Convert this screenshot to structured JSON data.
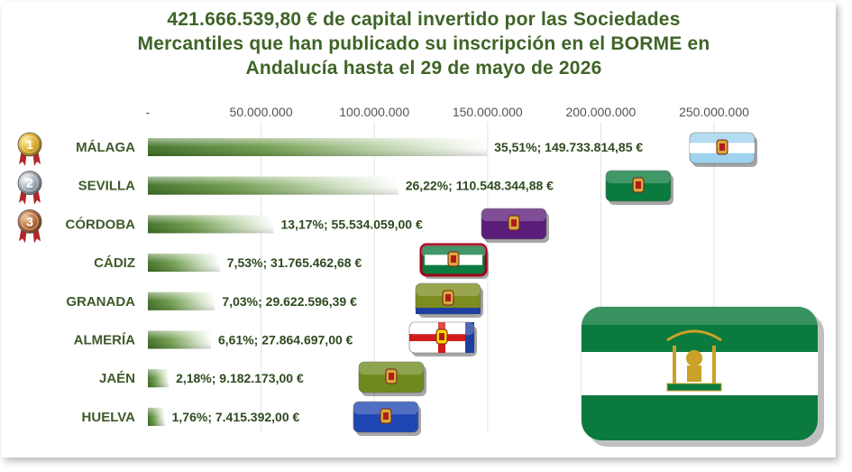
{
  "title_lines": [
    "421.666.539,80 € de capital invertido por las Sociedades",
    "Mercantiles que han publicado su inscripción en el BORME en",
    "Andalucía hasta el 29 de mayo de 2026"
  ],
  "colors": {
    "bar": "#4f7f2f",
    "title": "#3f6427",
    "andalucia_green": "#0b7a3e",
    "gold_medal": "#d8a928",
    "silver_medal": "#9aa6b1",
    "bronze_medal": "#b06a3b"
  },
  "medals": [
    {
      "rank": "1",
      "icon": "gold-medal-icon"
    },
    {
      "rank": "2",
      "icon": "silver-medal-icon"
    },
    {
      "rank": "3",
      "icon": "bronze-medal-icon"
    }
  ],
  "chart_data": {
    "type": "bar",
    "orientation": "horizontal",
    "title": "421.666.539,80 € de capital invertido por las Sociedades Mercantiles que han publicado su inscripción en el BORME en Andalucía hasta el 29 de mayo de 2026",
    "categories": [
      "MÁLAGA",
      "SEVILLA",
      "CÓRDOBA",
      "CÁDIZ",
      "GRANADA",
      "ALMERÍA",
      "JAÉN",
      "HUELVA"
    ],
    "values": [
      149733814.85,
      110548344.88,
      55534059.0,
      31765462.68,
      29622596.39,
      27864697.0,
      9182173.0,
      7415392.0
    ],
    "percents": [
      "35,51%",
      "26,22%",
      "13,17%",
      "7,53%",
      "7,03%",
      "6,61%",
      "2,18%",
      "1,76%"
    ],
    "data_labels": [
      "35,51%; 149.733.814,85 €",
      "26,22%; 110.548.344,88 €",
      "13,17%; 55.534.059,00 €",
      "7,53%; 31.765.462,68 €",
      "7,03%; 29.622.596,39 €",
      "6,61%; 27.864.697,00 €",
      "2,18%; 9.182.173,00 €",
      "1,76%; 7.415.392,00 €"
    ],
    "xlim": [
      0,
      250000000
    ],
    "x_ticks": [
      0,
      50000000,
      100000000,
      150000000,
      200000000,
      250000000
    ],
    "x_tick_labels": [
      "-",
      "50.000.000",
      "100.000.000",
      "150.000.000",
      "200.000.000",
      "250.000.000"
    ],
    "axis_position": "top",
    "grid": true,
    "legend": "none",
    "flag_icons": [
      "malaga-flag-icon",
      "sevilla-flag-icon",
      "cordoba-flag-icon",
      "cadiz-flag-icon",
      "granada-flag-icon",
      "almeria-flag-icon",
      "jaen-flag-icon",
      "huelva-flag-icon"
    ]
  },
  "decorations": {
    "large_flag_icon": "andalucia-flag-icon"
  }
}
